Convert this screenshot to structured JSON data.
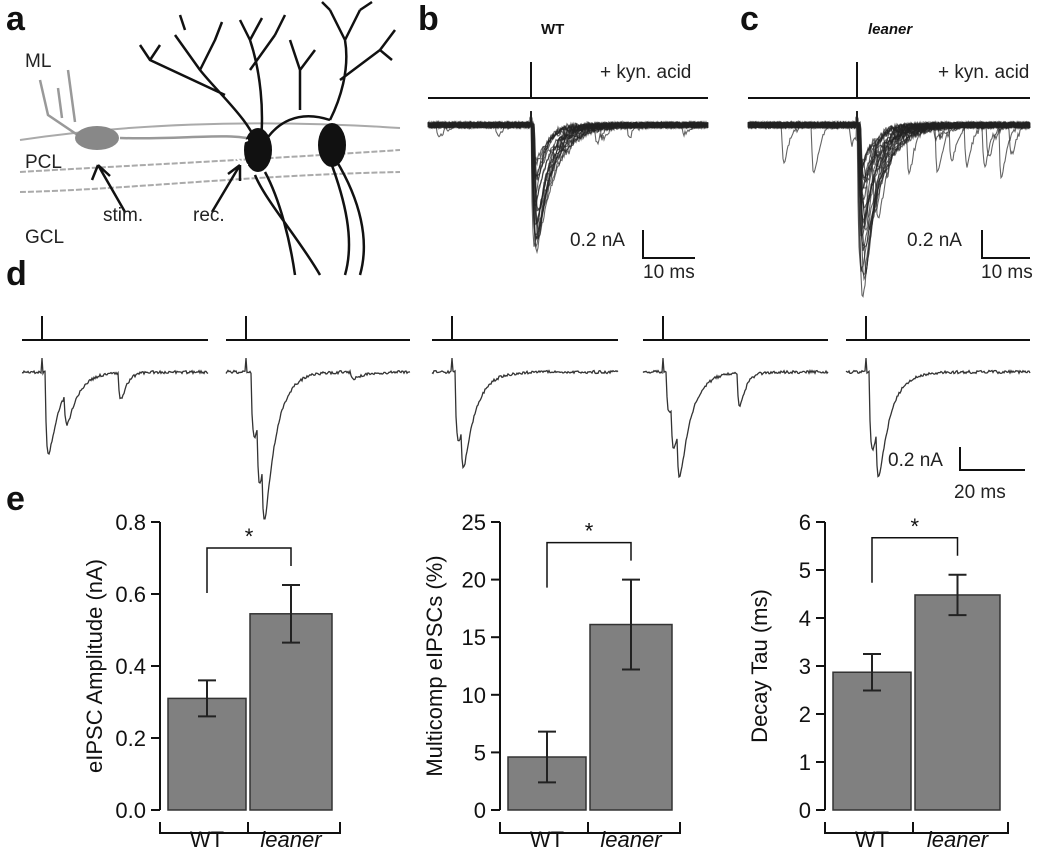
{
  "panels": {
    "labels": [
      "a",
      "b",
      "c",
      "d",
      "e"
    ],
    "a": {
      "layers": [
        "ML",
        "PCL",
        "GCL"
      ],
      "stim": "stim.",
      "rec": "rec."
    },
    "b": {
      "title": "WT",
      "condition": "+ kyn. acid",
      "scale_y": "0.2 nA",
      "scale_x": "10 ms"
    },
    "c": {
      "title": "leaner",
      "condition": "+ kyn. acid",
      "scale_y": "0.2 nA",
      "scale_x": "10 ms"
    },
    "d": {
      "scale_y": "0.2 nA",
      "scale_x": "20 ms"
    }
  },
  "chart_data": [
    {
      "type": "bar",
      "ylabel": "eIPSC Amplitude (nA)",
      "categories": [
        "WT",
        "leaner"
      ],
      "values": [
        0.31,
        0.545
      ],
      "errors": [
        0.05,
        0.08
      ],
      "color": "#808080",
      "ylim": [
        0,
        0.8
      ],
      "yticks": [
        {
          "value": 0,
          "label": "0.0"
        },
        0.2,
        0.4,
        0.6,
        0.8
      ],
      "annotation": "*"
    },
    {
      "type": "bar",
      "ylabel": "Multicomp eIPSCs (%)",
      "categories": [
        "WT",
        "leaner"
      ],
      "values": [
        4.6,
        16.1
      ],
      "errors": [
        2.2,
        3.9
      ],
      "color": "#808080",
      "ylim": [
        0,
        25
      ],
      "yticks": [
        0,
        5,
        10,
        15,
        20,
        25
      ],
      "annotation": "*"
    },
    {
      "type": "bar",
      "ylabel": "Decay Tau (ms)",
      "categories": [
        "WT",
        "leaner"
      ],
      "values": [
        2.87,
        4.48
      ],
      "errors": [
        0.38,
        0.42
      ],
      "color": "#808080",
      "ylim": [
        0,
        6
      ],
      "yticks": [
        0,
        1,
        2,
        3,
        4,
        5,
        6
      ],
      "annotation": "*"
    }
  ]
}
